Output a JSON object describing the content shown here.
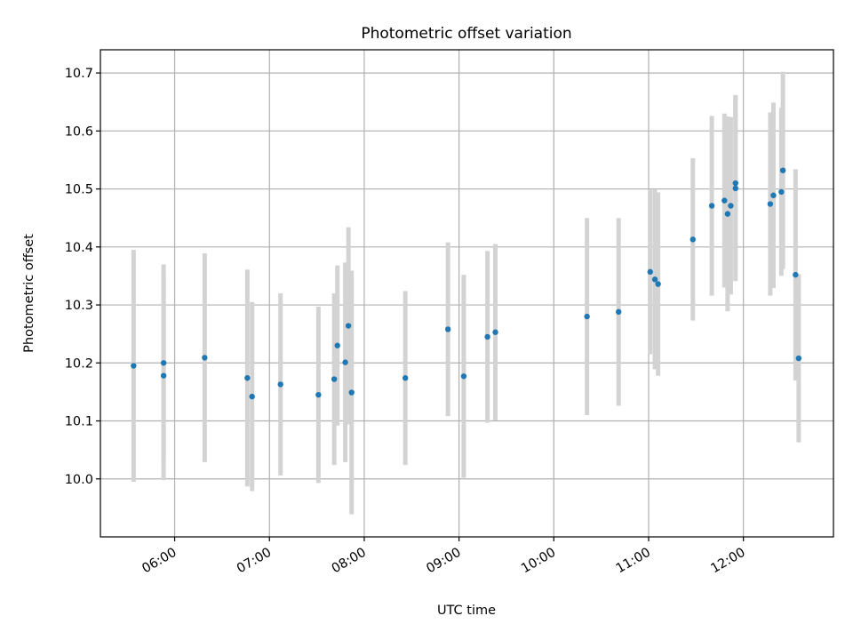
{
  "chart_data": {
    "type": "scatter",
    "title": "Photometric offset variation",
    "xlabel": "UTC time",
    "ylabel": "Photometric offset",
    "x_unit": "UTC time (HH:MM)",
    "xlim": [
      "05:13",
      "12:57"
    ],
    "ylim": [
      9.9,
      10.74
    ],
    "x_ticks": [
      "06:00",
      "07:00",
      "08:00",
      "09:00",
      "10:00",
      "11:00",
      "12:00"
    ],
    "y_ticks": [
      "10.0",
      "10.1",
      "10.2",
      "10.3",
      "10.4",
      "10.5",
      "10.6",
      "10.7"
    ],
    "grid": true,
    "marker_color": "#1f77b4",
    "errorbar_color": "#d3d3d3",
    "series": [
      {
        "points": [
          {
            "t": "05:34",
            "y": 10.195,
            "err": 0.2
          },
          {
            "t": "05:53",
            "y": 10.2,
            "err": 0.17
          },
          {
            "t": "05:53",
            "y": 10.178,
            "err": 0.18
          },
          {
            "t": "06:19",
            "y": 10.209,
            "err": 0.18
          },
          {
            "t": "06:46",
            "y": 10.174,
            "err": 0.187
          },
          {
            "t": "06:49",
            "y": 10.142,
            "err": 0.163
          },
          {
            "t": "07:07",
            "y": 10.163,
            "err": 0.157
          },
          {
            "t": "07:31",
            "y": 10.145,
            "err": 0.152
          },
          {
            "t": "07:41",
            "y": 10.172,
            "err": 0.148
          },
          {
            "t": "07:43",
            "y": 10.23,
            "err": 0.138
          },
          {
            "t": "07:48",
            "y": 10.201,
            "err": 0.172
          },
          {
            "t": "07:50",
            "y": 10.264,
            "err": 0.17
          },
          {
            "t": "07:52",
            "y": 10.149,
            "err": 0.21
          },
          {
            "t": "08:26",
            "y": 10.174,
            "err": 0.15
          },
          {
            "t": "08:53",
            "y": 10.258,
            "err": 0.15
          },
          {
            "t": "09:03",
            "y": 10.177,
            "err": 0.175
          },
          {
            "t": "09:18",
            "y": 10.245,
            "err": 0.148
          },
          {
            "t": "09:23",
            "y": 10.253,
            "err": 0.152
          },
          {
            "t": "10:21",
            "y": 10.28,
            "err": 0.17
          },
          {
            "t": "10:41",
            "y": 10.288,
            "err": 0.162
          },
          {
            "t": "11:01",
            "y": 10.357,
            "err": 0.142
          },
          {
            "t": "11:04",
            "y": 10.344,
            "err": 0.155
          },
          {
            "t": "11:06",
            "y": 10.336,
            "err": 0.158
          },
          {
            "t": "11:28",
            "y": 10.413,
            "err": 0.14
          },
          {
            "t": "11:40",
            "y": 10.471,
            "err": 0.155
          },
          {
            "t": "11:48",
            "y": 10.48,
            "err": 0.15
          },
          {
            "t": "11:50",
            "y": 10.457,
            "err": 0.168
          },
          {
            "t": "11:52",
            "y": 10.471,
            "err": 0.153
          },
          {
            "t": "11:55",
            "y": 10.51,
            "err": 0.152
          },
          {
            "t": "11:55",
            "y": 10.501,
            "err": 0.16
          },
          {
            "t": "12:17",
            "y": 10.474,
            "err": 0.158
          },
          {
            "t": "12:19",
            "y": 10.489,
            "err": 0.16
          },
          {
            "t": "12:24",
            "y": 10.495,
            "err": 0.145
          },
          {
            "t": "12:25",
            "y": 10.532,
            "err": 0.17
          },
          {
            "t": "12:33",
            "y": 10.352,
            "err": 0.182
          },
          {
            "t": "12:35",
            "y": 10.208,
            "err": 0.145
          }
        ]
      }
    ]
  }
}
